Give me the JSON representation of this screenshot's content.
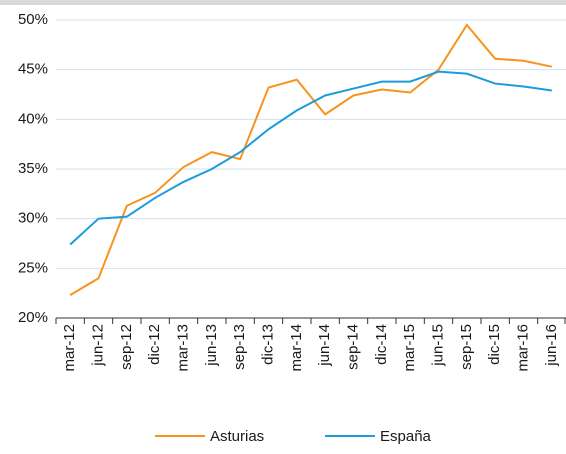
{
  "chart_data": {
    "type": "line",
    "categories": [
      "mar-12",
      "jun-12",
      "sep-12",
      "dic-12",
      "mar-13",
      "jun-13",
      "sep-13",
      "dic-13",
      "mar-14",
      "jun-14",
      "sep-14",
      "dic-14",
      "mar-15",
      "jun-15",
      "sep-15",
      "dic-15",
      "mar-16",
      "jun-16"
    ],
    "series": [
      {
        "name": "Asturias",
        "color": "#f7941d",
        "values": [
          22.3,
          24.0,
          31.3,
          32.6,
          35.2,
          36.7,
          36.0,
          43.2,
          44.0,
          40.5,
          42.4,
          43.0,
          42.7,
          45.0,
          49.5,
          46.1,
          45.9,
          45.3
        ]
      },
      {
        "name": "España",
        "color": "#1b9cd9",
        "values": [
          27.4,
          30.0,
          30.2,
          32.1,
          33.7,
          35.0,
          36.7,
          39.0,
          40.9,
          42.4,
          43.1,
          43.8,
          43.8,
          44.8,
          44.6,
          43.6,
          43.3,
          42.9
        ]
      }
    ],
    "ylim": [
      20,
      50
    ],
    "yticks": [
      {
        "value": 20,
        "label": "20%"
      },
      {
        "value": 25,
        "label": "25%"
      },
      {
        "value": 30,
        "label": "30%"
      },
      {
        "value": 35,
        "label": "35%"
      },
      {
        "value": 40,
        "label": "40%"
      },
      {
        "value": 45,
        "label": "45%"
      },
      {
        "value": 50,
        "label": "50%"
      }
    ],
    "grid": true,
    "legend": "bottom"
  }
}
